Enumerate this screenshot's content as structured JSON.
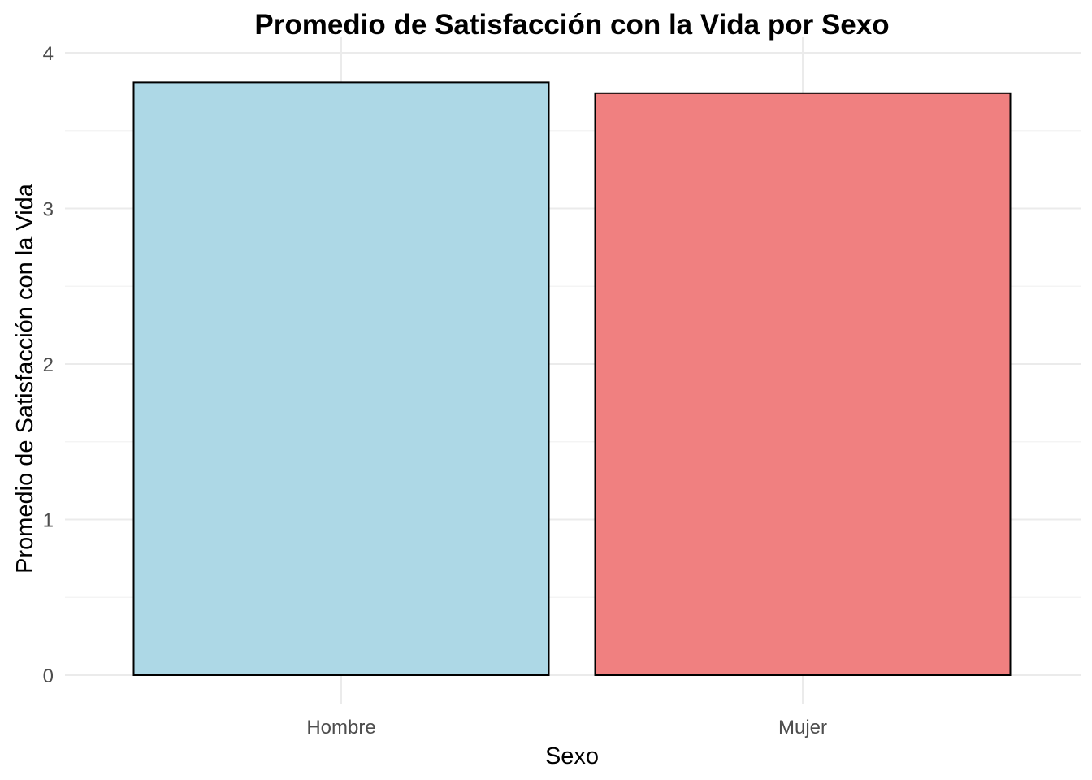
{
  "chart_data": {
    "type": "bar",
    "title": "Promedio de Satisfacción con la Vida por Sexo",
    "xlabel": "Sexo",
    "ylabel": "Promedio de Satisfacción con la Vida",
    "categories": [
      "Hombre",
      "Mujer"
    ],
    "values": [
      3.81,
      3.74
    ],
    "colors": [
      "#ADD8E6",
      "#F08080"
    ],
    "bar_outline": "#000000",
    "ylim": [
      0,
      4
    ],
    "yticks": [
      0,
      1,
      2,
      3,
      4
    ],
    "grid": true,
    "legend": "none"
  }
}
